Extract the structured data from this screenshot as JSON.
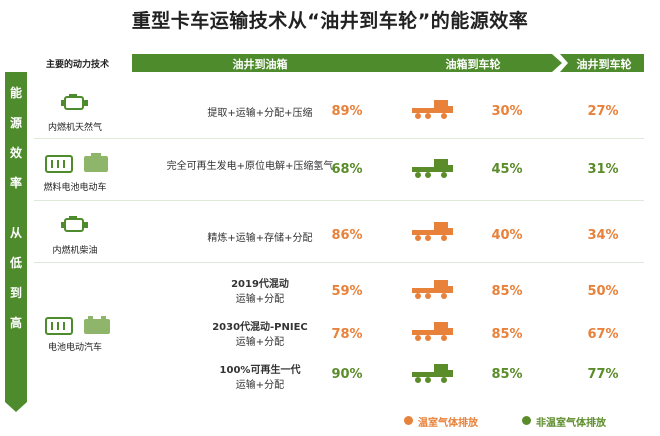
{
  "title": "重型卡车运输技术从“油井到车轮”的能源效率",
  "header": {
    "col0": "主要的动力技术",
    "col1": "油井到油箱",
    "col2": "油箱到车轮",
    "col3": "油井到车轮"
  },
  "side_label": [
    "能",
    "源",
    "效",
    "率",
    "从",
    "低",
    "到",
    "高"
  ],
  "rows": [
    {
      "name": "内燃机天然气",
      "icon": "engine-icon",
      "process": "提取+运输+分配+压缩",
      "p1": "89%",
      "p1_color": "orange",
      "truck_color": "orange",
      "p2": "30%",
      "p2_color": "orange",
      "p3": "27%",
      "p3_color": "orange"
    },
    {
      "name": "燃料电池电动车",
      "icon": "fuel-cell-icon",
      "process": "完全可再生发电+原位电解+压缩氢气",
      "p1": "68%",
      "p1_color": "green",
      "truck_color": "green",
      "p2": "45%",
      "p2_color": "green",
      "p3": "31%",
      "p3_color": "green"
    },
    {
      "name": "内燃机柴油",
      "icon": "engine-icon",
      "process": "精炼+运输+存储+分配",
      "p1": "86%",
      "p1_color": "orange",
      "truck_color": "orange",
      "p2": "40%",
      "p2_color": "orange",
      "p3": "34%",
      "p3_color": "orange"
    }
  ],
  "bev": {
    "name": "电池电动汽车",
    "sub": [
      {
        "title": "2019代混动",
        "process": "运输+分配",
        "p1": "59%",
        "p1_color": "orange",
        "truck_color": "orange",
        "p2": "85%",
        "p2_color": "orange",
        "p3": "50%",
        "p3_color": "orange"
      },
      {
        "title": "2030代混动-PNIEC",
        "process": "运输+分配",
        "p1": "78%",
        "p1_color": "orange",
        "truck_color": "orange",
        "p2": "85%",
        "p2_color": "orange",
        "p3": "67%",
        "p3_color": "orange"
      },
      {
        "title": "100%可再生一代",
        "process": "运输+分配",
        "p1": "90%",
        "p1_color": "green",
        "truck_color": "green",
        "p2": "85%",
        "p2_color": "green",
        "p3": "77%",
        "p3_color": "green"
      }
    ]
  },
  "legend": {
    "ghg": "温室气体排放",
    "non_ghg": "非温室气体排放"
  },
  "colors": {
    "accent_green": "#5b8c2a",
    "header_green": "#4e8b2c",
    "orange": "#e8813a",
    "green": "#5b8c2a"
  }
}
